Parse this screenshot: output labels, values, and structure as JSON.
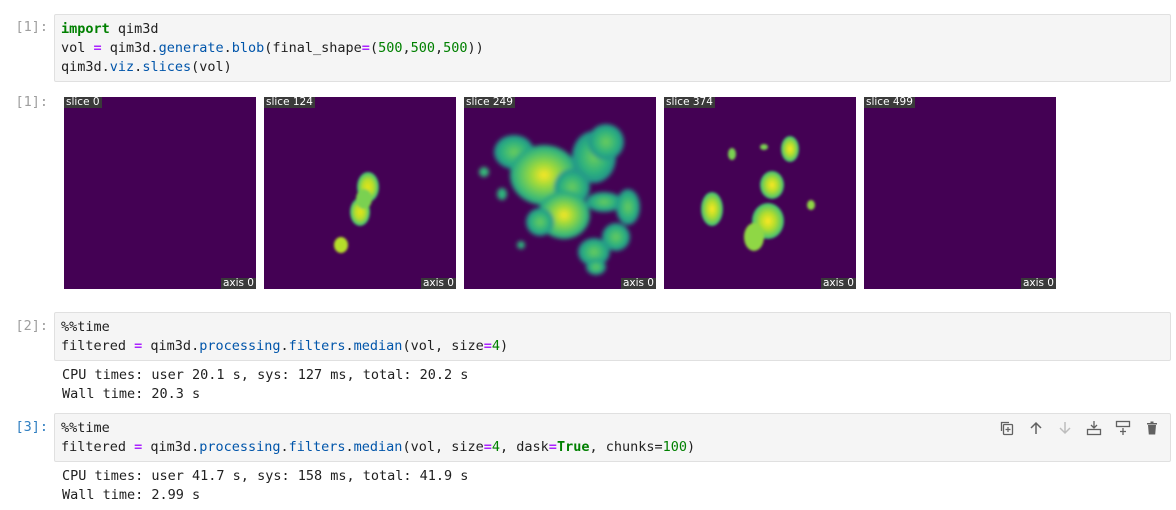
{
  "cells": [
    {
      "prompt": "[1]:",
      "code_lines": [
        [
          {
            "t": "import",
            "c": "kw"
          },
          {
            "t": " qim3d"
          }
        ],
        [
          {
            "t": "vol "
          },
          {
            "t": "=",
            "c": "op"
          },
          {
            "t": " qim3d."
          },
          {
            "t": "generate",
            "c": "attr"
          },
          {
            "t": "."
          },
          {
            "t": "blob",
            "c": "attr"
          },
          {
            "t": "(final_shape"
          },
          {
            "t": "=",
            "c": "op"
          },
          {
            "t": "("
          },
          {
            "t": "500",
            "c": "num"
          },
          {
            "t": ","
          },
          {
            "t": "500",
            "c": "num"
          },
          {
            "t": ","
          },
          {
            "t": "500",
            "c": "num"
          },
          {
            "t": "))"
          }
        ],
        [
          {
            "t": "qim3d."
          },
          {
            "t": "viz",
            "c": "attr"
          },
          {
            "t": "."
          },
          {
            "t": "slices",
            "c": "attr"
          },
          {
            "t": "(vol)"
          }
        ]
      ]
    },
    {
      "prompt": "[2]:",
      "code_lines": [
        [
          {
            "t": "%%time"
          }
        ],
        [
          {
            "t": "filtered "
          },
          {
            "t": "=",
            "c": "op"
          },
          {
            "t": " qim3d."
          },
          {
            "t": "processing",
            "c": "attr"
          },
          {
            "t": "."
          },
          {
            "t": "filters",
            "c": "attr"
          },
          {
            "t": "."
          },
          {
            "t": "median",
            "c": "attr"
          },
          {
            "t": "(vol, size"
          },
          {
            "t": "=",
            "c": "op"
          },
          {
            "t": "4",
            "c": "num"
          },
          {
            "t": ")"
          }
        ]
      ],
      "output": [
        "CPU times: user 20.1 s, sys: 127 ms, total: 20.2 s",
        "Wall time: 20.3 s"
      ]
    },
    {
      "prompt": "[3]:",
      "code_lines": [
        [
          {
            "t": "%%time"
          }
        ],
        [
          {
            "t": "filtered "
          },
          {
            "t": "=",
            "c": "op"
          },
          {
            "t": " qim3d."
          },
          {
            "t": "processing",
            "c": "attr"
          },
          {
            "t": "."
          },
          {
            "t": "filters",
            "c": "attr"
          },
          {
            "t": "."
          },
          {
            "t": "median",
            "c": "attr"
          },
          {
            "t": "(vol, size"
          },
          {
            "t": "=",
            "c": "op"
          },
          {
            "t": "4",
            "c": "num"
          },
          {
            "t": ", dask"
          },
          {
            "t": "=",
            "c": "op"
          },
          {
            "t": "True",
            "c": "kw"
          },
          {
            "t": ", chunks"
          },
          {
            "t": "="
          },
          {
            "t": "100",
            "c": "num"
          },
          {
            "t": ")"
          }
        ]
      ],
      "output": [
        "CPU times: user 41.7 s, sys: 158 ms, total: 41.9 s",
        "Wall time: 2.99 s"
      ]
    }
  ],
  "output1_prompt": "[1]:",
  "slices": [
    {
      "label": "slice 0",
      "axis": "axis 0"
    },
    {
      "label": "slice 124",
      "axis": "axis 0"
    },
    {
      "label": "slice 249",
      "axis": "axis 0"
    },
    {
      "label": "slice 374",
      "axis": "axis 0"
    },
    {
      "label": "slice 499",
      "axis": "axis 0"
    }
  ],
  "toolbar_icons": [
    "duplicate-icon",
    "move-up-icon",
    "move-down-icon",
    "insert-above-icon",
    "insert-below-icon",
    "delete-icon"
  ],
  "colors": {
    "viridis_bg": "#440154",
    "prompt_active": "#307fc1"
  }
}
